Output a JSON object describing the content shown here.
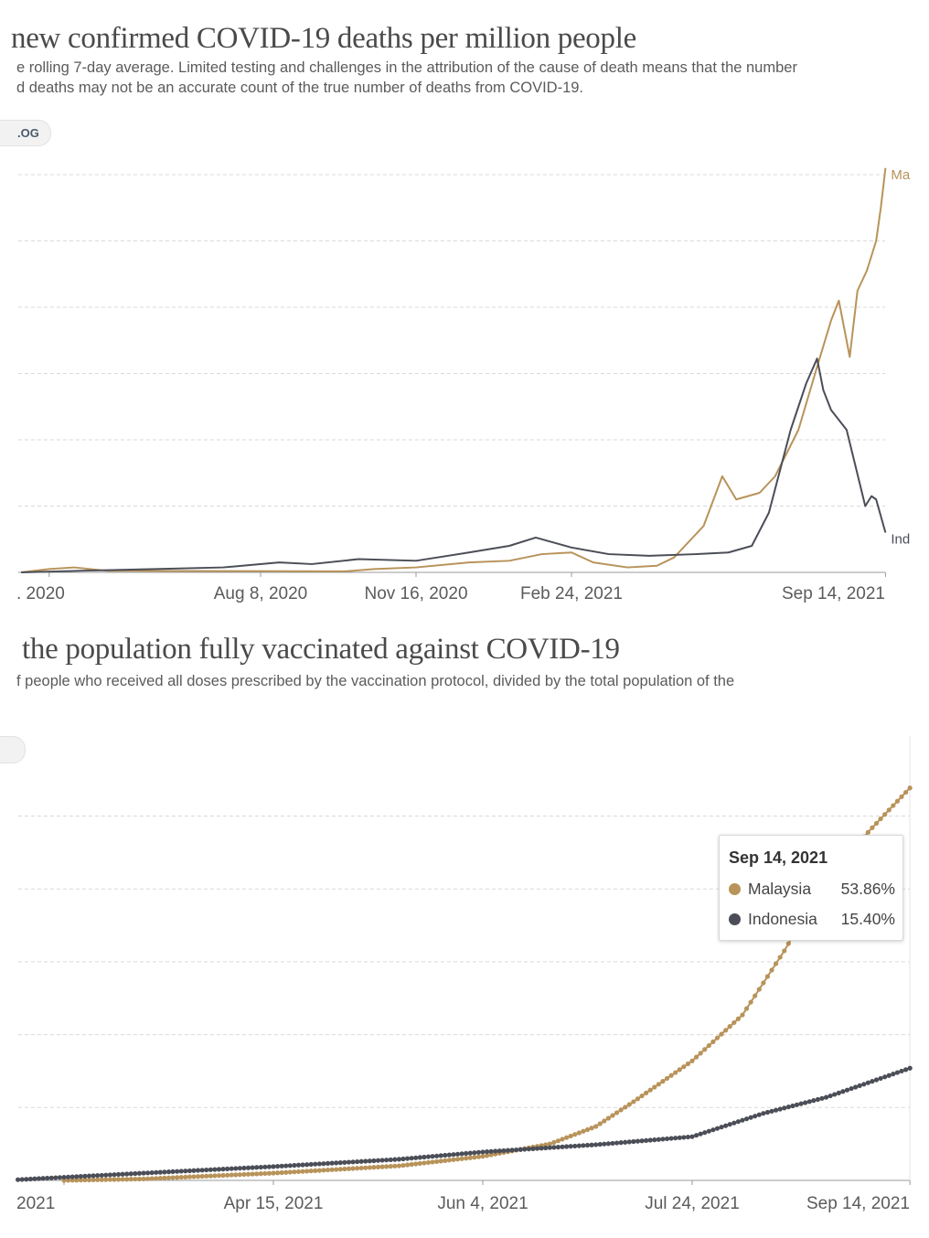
{
  "colors": {
    "malaysia": "#b8935a",
    "indonesia": "#4b4e57",
    "grid": "#d9d9d9",
    "axis": "#999999"
  },
  "chart_data": [
    {
      "type": "line",
      "title": "new confirmed COVID-19 deaths per million people",
      "subtitle_lines": [
        "e rolling 7-day average. Limited testing and challenges in the attribution of the cause of death means that the number",
        "d deaths may not be an accurate count of the true number of deaths from COVID-19."
      ],
      "scale_toggle_label": ".OG",
      "x_ticks": [
        {
          "date": "2020-03-25",
          "label": ". 2020"
        },
        {
          "date": "2020-08-08",
          "label": "Aug 8, 2020"
        },
        {
          "date": "2020-11-16",
          "label": "Nov 16, 2020"
        },
        {
          "date": "2021-02-24",
          "label": "Feb 24, 2021"
        },
        {
          "date": "2021-09-14",
          "label": "Sep 14, 2021"
        }
      ],
      "x_range": [
        "2020-03-07",
        "2021-09-14"
      ],
      "ylim": [
        0,
        12.2
      ],
      "y_grid": [
        2,
        4,
        6,
        8,
        10,
        12
      ],
      "grid": true,
      "series": [
        {
          "name": "Malaysia",
          "end_label": "Ma",
          "color_key": "malaysia",
          "points": [
            [
              "2020-03-07",
              0
            ],
            [
              "2020-03-25",
              0.1
            ],
            [
              "2020-04-10",
              0.15
            ],
            [
              "2020-05-01",
              0.05
            ],
            [
              "2020-10-01",
              0.03
            ],
            [
              "2020-10-20",
              0.1
            ],
            [
              "2020-11-16",
              0.15
            ],
            [
              "2020-12-20",
              0.3
            ],
            [
              "2021-01-15",
              0.35
            ],
            [
              "2021-02-05",
              0.55
            ],
            [
              "2021-02-24",
              0.6
            ],
            [
              "2021-03-10",
              0.3
            ],
            [
              "2021-04-01",
              0.15
            ],
            [
              "2021-04-20",
              0.2
            ],
            [
              "2021-05-01",
              0.45
            ],
            [
              "2021-05-20",
              1.4
            ],
            [
              "2021-06-01",
              2.9
            ],
            [
              "2021-06-10",
              2.2
            ],
            [
              "2021-06-25",
              2.4
            ],
            [
              "2021-07-05",
              2.9
            ],
            [
              "2021-07-20",
              4.3
            ],
            [
              "2021-08-01",
              6.2
            ],
            [
              "2021-08-10",
              7.6
            ],
            [
              "2021-08-15",
              8.2
            ],
            [
              "2021-08-22",
              6.5
            ],
            [
              "2021-08-27",
              8.5
            ],
            [
              "2021-09-02",
              9.1
            ],
            [
              "2021-09-08",
              10
            ],
            [
              "2021-09-11",
              11
            ],
            [
              "2021-09-14",
              12.2
            ]
          ]
        },
        {
          "name": "Indonesia",
          "end_label": "Ind",
          "color_key": "indonesia",
          "points": [
            [
              "2020-03-07",
              0
            ],
            [
              "2020-04-15",
              0.05
            ],
            [
              "2020-06-01",
              0.1
            ],
            [
              "2020-07-15",
              0.15
            ],
            [
              "2020-08-20",
              0.3
            ],
            [
              "2020-09-10",
              0.25
            ],
            [
              "2020-10-10",
              0.4
            ],
            [
              "2020-11-16",
              0.35
            ],
            [
              "2020-12-20",
              0.6
            ],
            [
              "2021-01-15",
              0.8
            ],
            [
              "2021-02-01",
              1.05
            ],
            [
              "2021-02-24",
              0.75
            ],
            [
              "2021-03-20",
              0.55
            ],
            [
              "2021-04-15",
              0.5
            ],
            [
              "2021-05-15",
              0.55
            ],
            [
              "2021-06-05",
              0.6
            ],
            [
              "2021-06-20",
              0.8
            ],
            [
              "2021-07-01",
              1.8
            ],
            [
              "2021-07-15",
              4.3
            ],
            [
              "2021-07-25",
              5.7
            ],
            [
              "2021-08-01",
              6.45
            ],
            [
              "2021-08-05",
              5.5
            ],
            [
              "2021-08-10",
              4.9
            ],
            [
              "2021-08-20",
              4.3
            ],
            [
              "2021-09-01",
              2.0
            ],
            [
              "2021-09-05",
              2.3
            ],
            [
              "2021-09-08",
              2.2
            ],
            [
              "2021-09-14",
              1.2
            ]
          ]
        }
      ]
    },
    {
      "type": "line",
      "title": "the population fully vaccinated against COVID-19",
      "subtitle_lines": [
        "f people who received all doses prescribed by the vaccination protocol, divided by the total population of the"
      ],
      "x_ticks": [
        {
          "date": "2021-02-24",
          "label": "2021"
        },
        {
          "date": "2021-04-15",
          "label": "Apr 15, 2021"
        },
        {
          "date": "2021-06-04",
          "label": "Jun 4, 2021"
        },
        {
          "date": "2021-07-24",
          "label": "Jul 24, 2021"
        },
        {
          "date": "2021-09-14",
          "label": "Sep 14, 2021"
        }
      ],
      "x_range": [
        "2021-02-13",
        "2021-09-14"
      ],
      "ylim": [
        0,
        60
      ],
      "y_grid": [
        10,
        20,
        30,
        40,
        50
      ],
      "y_unit": "%",
      "grid": true,
      "markers": true,
      "series": [
        {
          "name": "Malaysia",
          "color_key": "malaysia",
          "points": [
            [
              "2021-02-24",
              0
            ],
            [
              "2021-03-15",
              0.2
            ],
            [
              "2021-04-15",
              1.0
            ],
            [
              "2021-05-15",
              2.0
            ],
            [
              "2021-06-04",
              3.3
            ],
            [
              "2021-06-20",
              5
            ],
            [
              "2021-07-01",
              7.4
            ],
            [
              "2021-07-10",
              10.8
            ],
            [
              "2021-07-24",
              16.4
            ],
            [
              "2021-08-05",
              22.7
            ],
            [
              "2021-08-15",
              31.5
            ],
            [
              "2021-08-25",
              41.5
            ],
            [
              "2021-09-05",
              48.4
            ],
            [
              "2021-09-14",
              53.86
            ]
          ]
        },
        {
          "name": "Indonesia",
          "color_key": "indonesia",
          "points": [
            [
              "2021-02-13",
              0.1
            ],
            [
              "2021-03-15",
              1.0
            ],
            [
              "2021-04-15",
              1.9
            ],
            [
              "2021-05-15",
              2.9
            ],
            [
              "2021-06-04",
              3.9
            ],
            [
              "2021-07-01",
              4.9
            ],
            [
              "2021-07-24",
              6.0
            ],
            [
              "2021-08-10",
              9.2
            ],
            [
              "2021-08-25",
              11.4
            ],
            [
              "2021-09-14",
              15.4
            ]
          ]
        }
      ],
      "tooltip": {
        "date": "Sep 14, 2021",
        "rows": [
          {
            "name": "Malaysia",
            "value": "53.86%",
            "color_key": "malaysia"
          },
          {
            "name": "Indonesia",
            "value": "15.40%",
            "color_key": "indonesia"
          }
        ]
      }
    }
  ]
}
